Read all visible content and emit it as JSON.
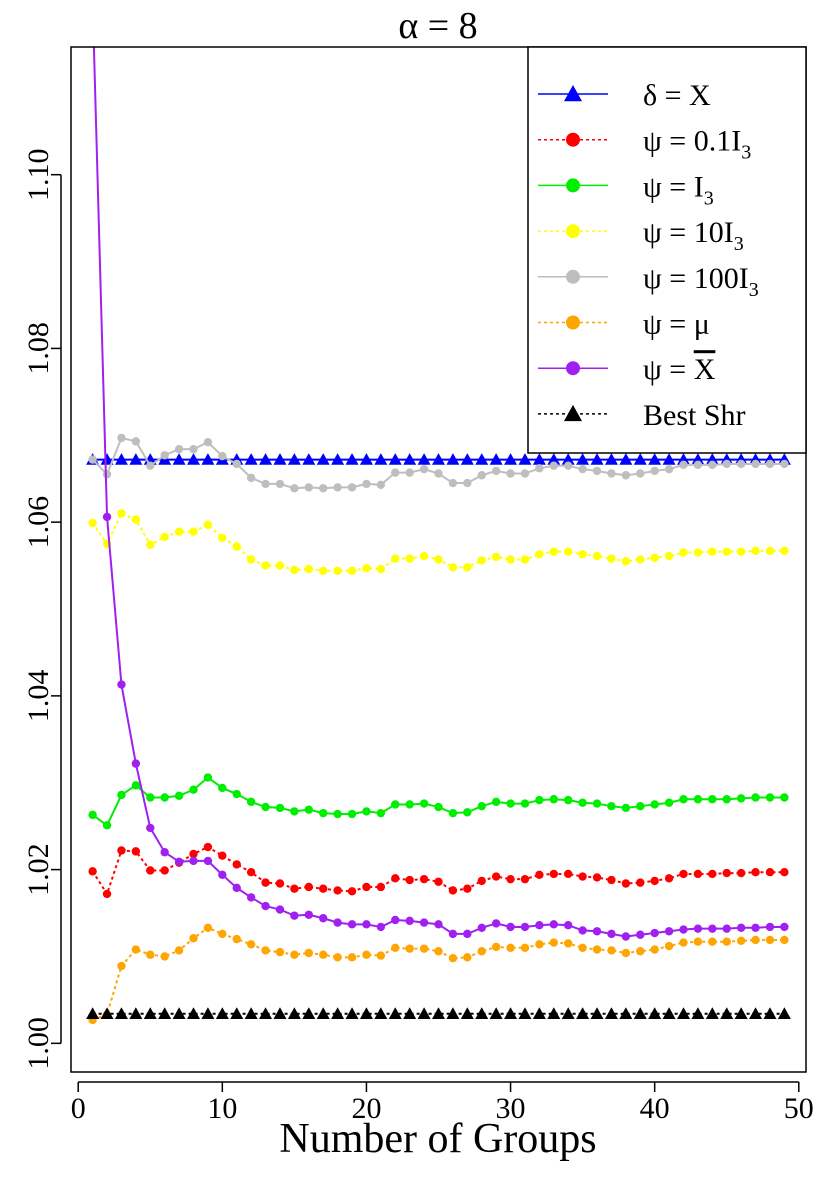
{
  "chart_data": {
    "type": "line",
    "title": "α = 8",
    "xlabel": "Number of Groups",
    "ylabel": "",
    "xlim": [
      -0.5,
      50.5
    ],
    "ylim": [
      0.9967,
      1.1147
    ],
    "x_ticks": [
      0,
      10,
      20,
      30,
      40,
      50
    ],
    "x_tick_labels": [
      "0",
      "10",
      "20",
      "30",
      "40",
      "50"
    ],
    "y_ticks": [
      1.0,
      1.02,
      1.04,
      1.06,
      1.08,
      1.1
    ],
    "y_tick_labels": [
      "1.00",
      "1.02",
      "1.04",
      "1.06",
      "1.08",
      "1.10"
    ],
    "grid": false,
    "legend_position": "top-right",
    "x": [
      1,
      2,
      3,
      4,
      5,
      6,
      7,
      8,
      9,
      10,
      11,
      12,
      13,
      14,
      15,
      16,
      17,
      18,
      19,
      20,
      21,
      22,
      23,
      24,
      25,
      26,
      27,
      28,
      29,
      30,
      31,
      32,
      33,
      34,
      35,
      36,
      37,
      38,
      39,
      40,
      41,
      42,
      43,
      44,
      45,
      46,
      47,
      48,
      49
    ],
    "series": [
      {
        "name": "δ = X",
        "legend_parts": {
          "sym": "δ = X",
          "sub": ""
        },
        "color": "#0000ff",
        "marker": "triangle",
        "dashed": false,
        "values": [
          1.0672,
          1.0672,
          1.0672,
          1.0672,
          1.0672,
          1.0672,
          1.0672,
          1.0672,
          1.0672,
          1.0672,
          1.0672,
          1.0672,
          1.0672,
          1.0672,
          1.0672,
          1.0672,
          1.0672,
          1.0672,
          1.0672,
          1.0672,
          1.0672,
          1.0672,
          1.0672,
          1.0672,
          1.0672,
          1.0672,
          1.0672,
          1.0672,
          1.0672,
          1.0672,
          1.0672,
          1.0672,
          1.0672,
          1.0672,
          1.0672,
          1.0672,
          1.0672,
          1.0672,
          1.0672,
          1.0672,
          1.0672,
          1.0672,
          1.0672,
          1.0672,
          1.0672,
          1.0672,
          1.0672,
          1.0672,
          1.0672
        ]
      },
      {
        "name": "ψ = 0.1I3",
        "legend_parts": {
          "sym": "ψ = 0.1I",
          "sub": "3"
        },
        "color": "#ff0000",
        "marker": "circle",
        "dashed": true,
        "values": [
          1.0198,
          1.0172,
          1.0222,
          1.0221,
          1.0199,
          1.0199,
          1.0208,
          1.0218,
          1.0226,
          1.0216,
          1.0206,
          1.0197,
          1.0185,
          1.0184,
          1.0178,
          1.018,
          1.0178,
          1.0176,
          1.0175,
          1.018,
          1.018,
          1.019,
          1.0188,
          1.0189,
          1.0186,
          1.0176,
          1.0178,
          1.0187,
          1.0192,
          1.0189,
          1.0189,
          1.0194,
          1.0195,
          1.0195,
          1.0192,
          1.0191,
          1.0188,
          1.0184,
          1.0185,
          1.0187,
          1.019,
          1.0195,
          1.0195,
          1.0195,
          1.0196,
          1.0196,
          1.0197,
          1.0197,
          1.0197
        ]
      },
      {
        "name": "ψ = I3",
        "legend_parts": {
          "sym": "ψ = I",
          "sub": "3"
        },
        "color": "#00ee00",
        "marker": "circle",
        "dashed": false,
        "values": [
          1.0263,
          1.0251,
          1.0286,
          1.0297,
          1.0283,
          1.0283,
          1.0285,
          1.0292,
          1.0306,
          1.0294,
          1.0287,
          1.0278,
          1.0272,
          1.0271,
          1.0267,
          1.0269,
          1.0265,
          1.0264,
          1.0264,
          1.0267,
          1.0265,
          1.0275,
          1.0275,
          1.0276,
          1.0272,
          1.0265,
          1.0266,
          1.0273,
          1.0278,
          1.0276,
          1.0276,
          1.028,
          1.0281,
          1.028,
          1.0277,
          1.0276,
          1.0273,
          1.0271,
          1.0273,
          1.0275,
          1.0277,
          1.0281,
          1.0281,
          1.0281,
          1.0281,
          1.0282,
          1.0283,
          1.0283,
          1.0283
        ]
      },
      {
        "name": "ψ = 10I3",
        "legend_parts": {
          "sym": "ψ = 10I",
          "sub": "3"
        },
        "color": "#ffff00",
        "marker": "circle",
        "dashed": true,
        "values": [
          1.0599,
          1.0575,
          1.061,
          1.0603,
          1.0574,
          1.0583,
          1.0589,
          1.0589,
          1.0597,
          1.0582,
          1.0572,
          1.0557,
          1.055,
          1.055,
          1.0545,
          1.0546,
          1.0544,
          1.0544,
          1.0544,
          1.0547,
          1.0546,
          1.0558,
          1.0558,
          1.0561,
          1.0557,
          1.0548,
          1.0548,
          1.0556,
          1.056,
          1.0557,
          1.0557,
          1.0563,
          1.0566,
          1.0566,
          1.0563,
          1.0561,
          1.0558,
          1.0555,
          1.0557,
          1.0559,
          1.0561,
          1.0565,
          1.0565,
          1.0566,
          1.0566,
          1.0566,
          1.0567,
          1.0567,
          1.0567
        ]
      },
      {
        "name": "ψ = 100I3",
        "legend_parts": {
          "sym": "ψ = 100I",
          "sub": "3"
        },
        "color": "#bebebe",
        "marker": "circle",
        "dashed": false,
        "values": [
          1.0672,
          1.0655,
          1.0697,
          1.0693,
          1.0665,
          1.0677,
          1.0684,
          1.0684,
          1.0692,
          1.0676,
          1.0667,
          1.0651,
          1.0644,
          1.0644,
          1.0639,
          1.064,
          1.0639,
          1.064,
          1.064,
          1.0644,
          1.0643,
          1.0657,
          1.0657,
          1.0661,
          1.0656,
          1.0645,
          1.0645,
          1.0654,
          1.0659,
          1.0656,
          1.0656,
          1.0662,
          1.0665,
          1.0665,
          1.0661,
          1.0659,
          1.0656,
          1.0654,
          1.0656,
          1.0659,
          1.0661,
          1.0666,
          1.0666,
          1.0666,
          1.0667,
          1.0667,
          1.0667,
          1.0667,
          1.0667
        ]
      },
      {
        "name": "ψ = μ",
        "legend_parts": {
          "sym": "ψ = μ",
          "sub": ""
        },
        "color": "#ffa500",
        "marker": "circle",
        "dashed": true,
        "values": [
          1.0027,
          1.0033,
          1.0089,
          1.0108,
          1.0102,
          1.01,
          1.0107,
          1.0121,
          1.0133,
          1.0126,
          1.012,
          1.0114,
          1.0107,
          1.0105,
          1.0102,
          1.0104,
          1.0102,
          1.0099,
          1.0099,
          1.0102,
          1.0101,
          1.011,
          1.0109,
          1.0109,
          1.0106,
          1.0098,
          1.0099,
          1.0106,
          1.0111,
          1.011,
          1.011,
          1.0114,
          1.0116,
          1.0115,
          1.011,
          1.0108,
          1.0107,
          1.0104,
          1.0106,
          1.0108,
          1.0112,
          1.0116,
          1.0117,
          1.0117,
          1.0117,
          1.0118,
          1.0119,
          1.0119,
          1.0119
        ]
      },
      {
        "name": "ψ = X̄",
        "legend_parts": {
          "sym": "ψ = X",
          "sub": "",
          "overline_last": true
        },
        "color": "#a020f0",
        "marker": "circle",
        "dashed": false,
        "values": [
          1.12,
          1.0606,
          1.0413,
          1.0322,
          1.0248,
          1.022,
          1.0209,
          1.021,
          1.021,
          1.0194,
          1.0179,
          1.0168,
          1.0158,
          1.0154,
          1.0147,
          1.0148,
          1.0144,
          1.0139,
          1.0137,
          1.0137,
          1.0134,
          1.0142,
          1.0141,
          1.0139,
          1.0137,
          1.0126,
          1.0126,
          1.0133,
          1.0138,
          1.0134,
          1.0134,
          1.0136,
          1.0137,
          1.0136,
          1.013,
          1.0129,
          1.0126,
          1.0123,
          1.0125,
          1.0127,
          1.0129,
          1.0131,
          1.0132,
          1.0132,
          1.0132,
          1.0133,
          1.0133,
          1.0134,
          1.0134
        ]
      },
      {
        "name": "Best Shr",
        "legend_parts": {
          "sym": "Best Shr",
          "sub": ""
        },
        "color": "#000000",
        "marker": "triangle",
        "dashed": true,
        "values": [
          1.0034,
          1.0034,
          1.0034,
          1.0034,
          1.0034,
          1.0034,
          1.0034,
          1.0034,
          1.0034,
          1.0034,
          1.0034,
          1.0034,
          1.0034,
          1.0034,
          1.0034,
          1.0034,
          1.0034,
          1.0034,
          1.0034,
          1.0034,
          1.0034,
          1.0034,
          1.0034,
          1.0034,
          1.0034,
          1.0034,
          1.0034,
          1.0034,
          1.0034,
          1.0034,
          1.0034,
          1.0034,
          1.0034,
          1.0034,
          1.0034,
          1.0034,
          1.0034,
          1.0034,
          1.0034,
          1.0034,
          1.0034,
          1.0034,
          1.0034,
          1.0034,
          1.0034,
          1.0034,
          1.0034,
          1.0034,
          1.0034
        ]
      }
    ]
  }
}
